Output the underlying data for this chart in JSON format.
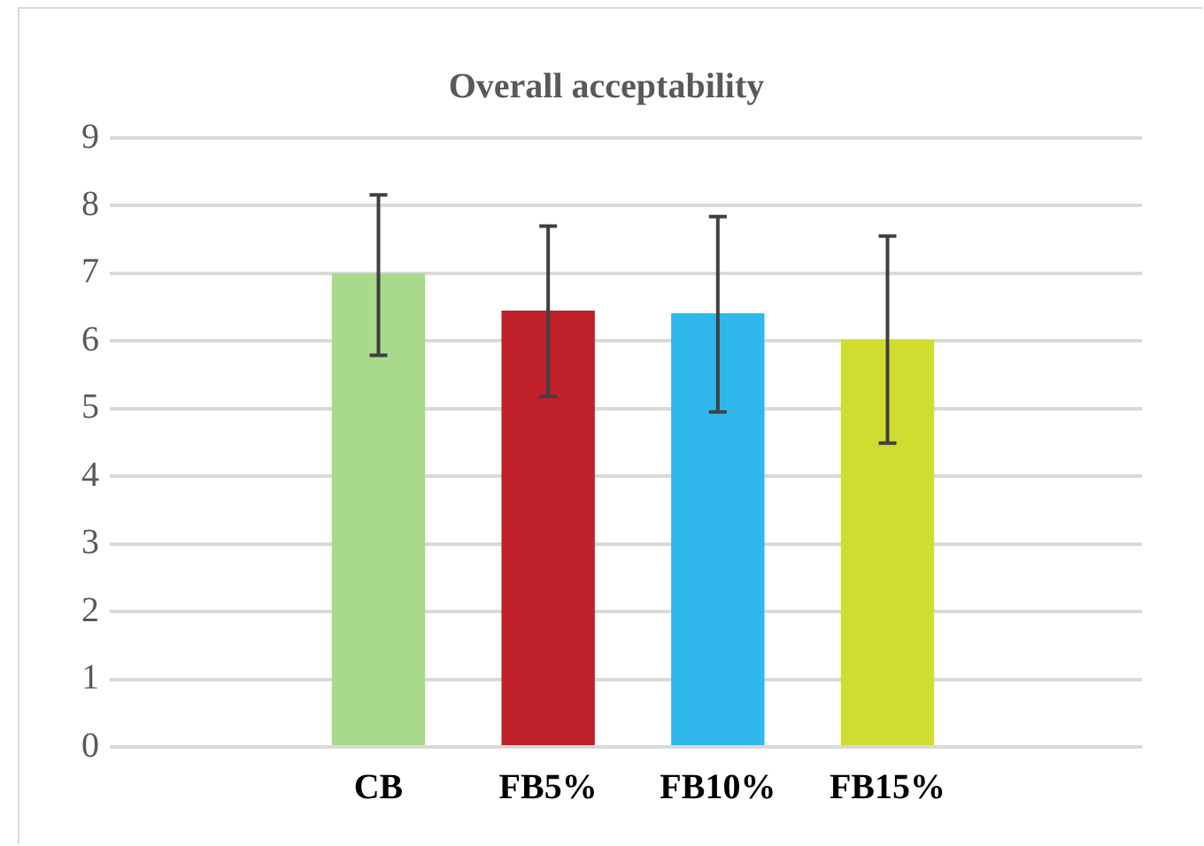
{
  "chart_data": {
    "type": "bar",
    "title": "Overall acceptability",
    "categories": [
      null,
      "CB",
      "FB5%",
      "FB10%",
      "FB15%",
      null
    ],
    "values": [
      null,
      7.0,
      6.45,
      6.41,
      6.02,
      null
    ],
    "colors": [
      "#a9d98a",
      "#a9d98a",
      "#c0202a",
      "#30b8ec",
      "#d0dc30",
      "#a9d98a"
    ],
    "errors": [
      null,
      [
        5.79,
        8.16
      ],
      [
        5.18,
        7.7
      ],
      [
        4.95,
        7.84
      ],
      [
        4.49,
        7.55
      ],
      null
    ],
    "ylim": [
      0,
      9
    ],
    "yticks": [
      0,
      1,
      2,
      3,
      4,
      5,
      6,
      7,
      8,
      9
    ],
    "grid": "y",
    "legend": false
  }
}
